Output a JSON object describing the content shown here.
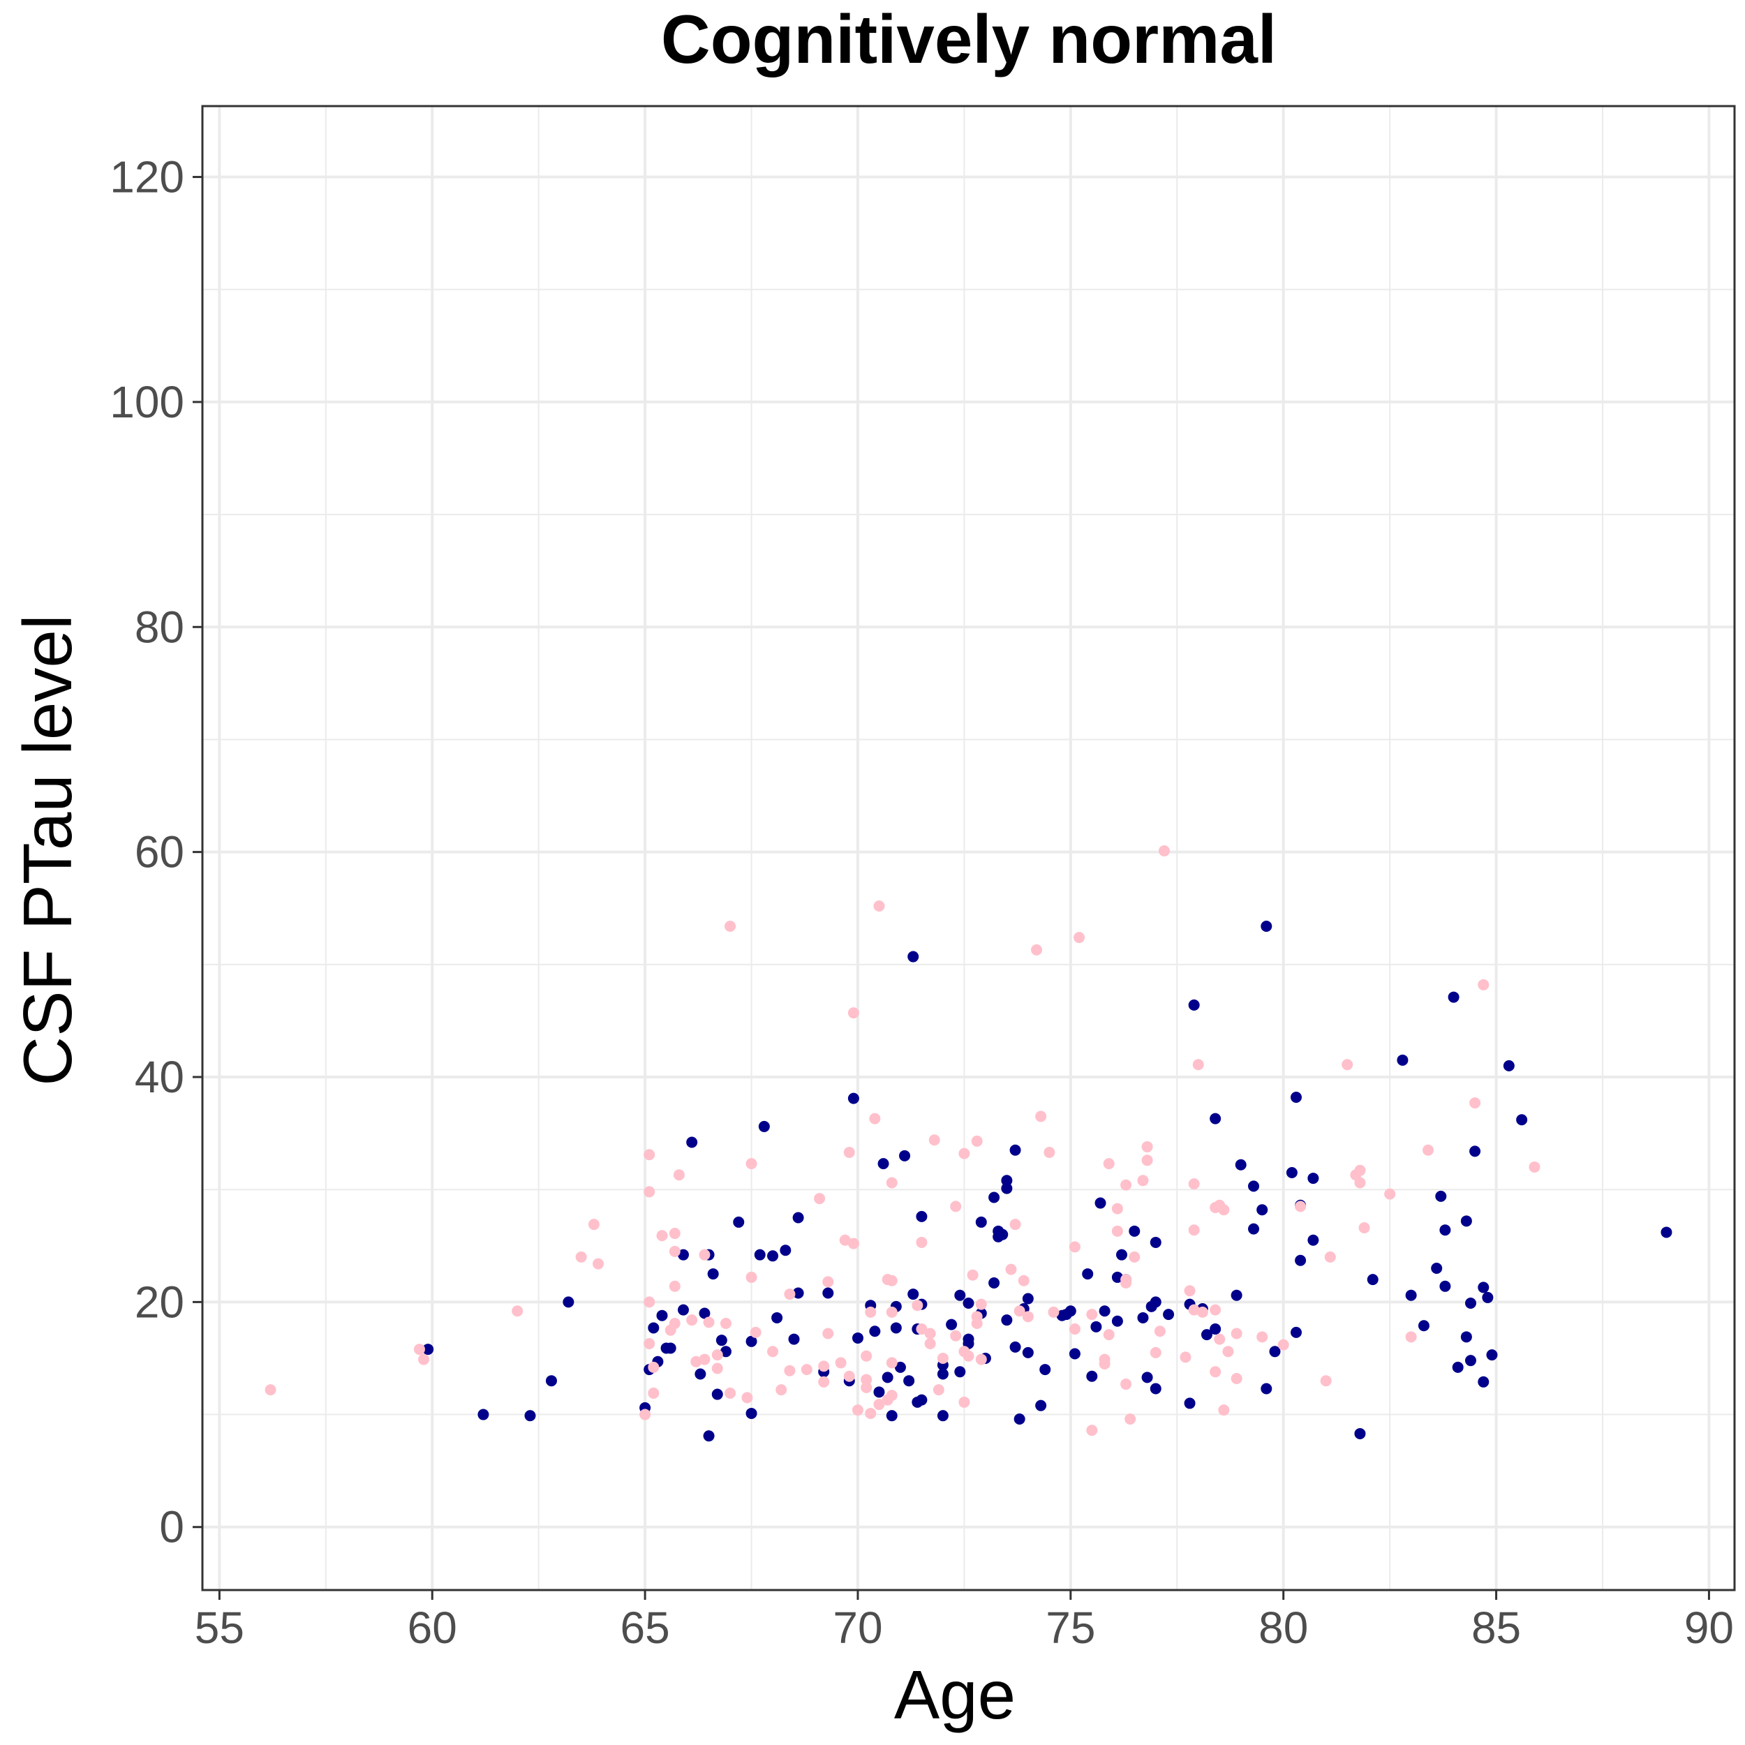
{
  "chart_data": {
    "type": "scatter",
    "title": "Cognitively normal",
    "xlabel": "Age",
    "ylabel": "CSF PTau level",
    "xlim": [
      54.6,
      90.6
    ],
    "ylim": [
      -5.6,
      126.3
    ],
    "x_ticks": [
      55,
      60,
      65,
      70,
      75,
      80,
      85,
      90
    ],
    "y_ticks": [
      0,
      20,
      40,
      60,
      80,
      100,
      120
    ],
    "x_tick_labels": [
      "55",
      "60",
      "65",
      "70",
      "75",
      "80",
      "85",
      "90"
    ],
    "y_tick_labels": [
      "0",
      "20",
      "40",
      "60",
      "80",
      "100",
      "120"
    ],
    "grid": true,
    "legend": "none",
    "series": [
      {
        "color": "#00008B",
        "points": [
          [
            59.9,
            15.8
          ],
          [
            61.2,
            10.0
          ],
          [
            62.3,
            9.9
          ],
          [
            62.8,
            13.0
          ],
          [
            63.2,
            20.0
          ],
          [
            65.0,
            10.6
          ],
          [
            65.1,
            14.0
          ],
          [
            65.2,
            17.7
          ],
          [
            65.3,
            14.7
          ],
          [
            65.4,
            18.8
          ],
          [
            65.5,
            15.9
          ],
          [
            65.6,
            15.9
          ],
          [
            65.9,
            19.3
          ],
          [
            65.9,
            24.2
          ],
          [
            66.1,
            34.2
          ],
          [
            66.3,
            13.6
          ],
          [
            66.4,
            19.0
          ],
          [
            66.5,
            24.2
          ],
          [
            66.5,
            8.1
          ],
          [
            66.6,
            22.5
          ],
          [
            66.7,
            11.8
          ],
          [
            66.8,
            16.6
          ],
          [
            66.9,
            15.6
          ],
          [
            67.2,
            27.1
          ],
          [
            67.5,
            10.1
          ],
          [
            67.5,
            16.5
          ],
          [
            67.7,
            24.2
          ],
          [
            67.8,
            35.6
          ],
          [
            68.0,
            24.1
          ],
          [
            68.1,
            18.6
          ],
          [
            68.3,
            24.6
          ],
          [
            68.5,
            16.7
          ],
          [
            68.6,
            20.8
          ],
          [
            68.6,
            27.5
          ],
          [
            69.2,
            13.8
          ],
          [
            69.3,
            20.8
          ],
          [
            69.8,
            13.0
          ],
          [
            69.9,
            38.1
          ],
          [
            70.0,
            16.8
          ],
          [
            70.3,
            19.7
          ],
          [
            70.4,
            17.4
          ],
          [
            70.5,
            12.0
          ],
          [
            70.6,
            32.3
          ],
          [
            70.7,
            13.3
          ],
          [
            70.8,
            9.9
          ],
          [
            70.9,
            19.6
          ],
          [
            70.9,
            17.7
          ],
          [
            71.0,
            14.2
          ],
          [
            71.1,
            33.0
          ],
          [
            71.2,
            13.0
          ],
          [
            71.3,
            20.7
          ],
          [
            71.3,
            50.7
          ],
          [
            71.4,
            17.6
          ],
          [
            71.4,
            11.1
          ],
          [
            71.5,
            27.6
          ],
          [
            71.5,
            11.3
          ],
          [
            71.5,
            19.8
          ],
          [
            72.0,
            14.4
          ],
          [
            72.0,
            13.6
          ],
          [
            72.0,
            9.9
          ],
          [
            72.2,
            18.0
          ],
          [
            72.4,
            13.8
          ],
          [
            72.4,
            20.6
          ],
          [
            72.6,
            16.7
          ],
          [
            72.6,
            16.3
          ],
          [
            72.6,
            19.9
          ],
          [
            72.9,
            27.1
          ],
          [
            72.9,
            19.0
          ],
          [
            73.0,
            15.0
          ],
          [
            73.2,
            29.3
          ],
          [
            73.2,
            21.7
          ],
          [
            73.3,
            26.3
          ],
          [
            73.3,
            25.8
          ],
          [
            73.4,
            26.0
          ],
          [
            73.5,
            30.1
          ],
          [
            73.5,
            30.8
          ],
          [
            73.5,
            18.4
          ],
          [
            73.7,
            33.5
          ],
          [
            73.7,
            16.0
          ],
          [
            73.8,
            9.6
          ],
          [
            73.9,
            19.4
          ],
          [
            74.0,
            20.3
          ],
          [
            74.0,
            15.5
          ],
          [
            74.3,
            10.8
          ],
          [
            74.4,
            14.0
          ],
          [
            74.8,
            18.8
          ],
          [
            74.9,
            18.9
          ],
          [
            75.0,
            19.2
          ],
          [
            75.1,
            15.4
          ],
          [
            75.4,
            22.5
          ],
          [
            75.5,
            13.4
          ],
          [
            75.6,
            17.8
          ],
          [
            75.7,
            28.8
          ],
          [
            75.8,
            19.2
          ],
          [
            76.1,
            18.3
          ],
          [
            76.1,
            22.2
          ],
          [
            76.2,
            24.2
          ],
          [
            76.3,
            22.0
          ],
          [
            76.5,
            26.3
          ],
          [
            76.7,
            18.6
          ],
          [
            76.8,
            13.3
          ],
          [
            76.9,
            19.6
          ],
          [
            77.0,
            12.3
          ],
          [
            77.0,
            20.0
          ],
          [
            77.0,
            25.3
          ],
          [
            77.3,
            18.9
          ],
          [
            77.8,
            11.0
          ],
          [
            77.8,
            19.8
          ],
          [
            77.9,
            46.4
          ],
          [
            78.1,
            19.4
          ],
          [
            78.2,
            17.1
          ],
          [
            78.4,
            36.3
          ],
          [
            78.4,
            17.6
          ],
          [
            78.9,
            20.6
          ],
          [
            79.0,
            32.2
          ],
          [
            79.3,
            26.5
          ],
          [
            79.3,
            30.3
          ],
          [
            79.5,
            28.2
          ],
          [
            79.6,
            53.4
          ],
          [
            79.6,
            12.3
          ],
          [
            79.8,
            15.6
          ],
          [
            80.2,
            31.5
          ],
          [
            80.3,
            17.3
          ],
          [
            80.3,
            38.2
          ],
          [
            80.4,
            23.7
          ],
          [
            80.4,
            28.6
          ],
          [
            80.7,
            31.0
          ],
          [
            80.7,
            25.5
          ],
          [
            81.8,
            8.3
          ],
          [
            82.1,
            22.0
          ],
          [
            82.8,
            41.5
          ],
          [
            83.0,
            20.6
          ],
          [
            83.3,
            17.9
          ],
          [
            83.6,
            23.0
          ],
          [
            83.7,
            29.4
          ],
          [
            83.8,
            26.4
          ],
          [
            83.8,
            21.4
          ],
          [
            84.0,
            47.1
          ],
          [
            84.1,
            14.2
          ],
          [
            84.3,
            27.2
          ],
          [
            84.3,
            16.9
          ],
          [
            84.4,
            19.9
          ],
          [
            84.4,
            14.8
          ],
          [
            84.5,
            33.4
          ],
          [
            84.7,
            12.9
          ],
          [
            84.7,
            21.3
          ],
          [
            84.8,
            20.4
          ],
          [
            84.9,
            15.3
          ],
          [
            85.3,
            41.0
          ],
          [
            85.6,
            36.2
          ],
          [
            89.0,
            26.2
          ]
        ]
      },
      {
        "color": "#FFC0CB",
        "points": [
          [
            56.2,
            12.2
          ],
          [
            59.7,
            15.8
          ],
          [
            59.8,
            14.9
          ],
          [
            62.0,
            19.2
          ],
          [
            63.5,
            24.0
          ],
          [
            63.8,
            26.9
          ],
          [
            63.9,
            23.4
          ],
          [
            65.0,
            10.0
          ],
          [
            65.1,
            33.1
          ],
          [
            65.1,
            29.8
          ],
          [
            65.1,
            20.0
          ],
          [
            65.1,
            16.3
          ],
          [
            65.2,
            14.2
          ],
          [
            65.2,
            11.9
          ],
          [
            65.4,
            25.9
          ],
          [
            65.6,
            17.5
          ],
          [
            65.7,
            21.4
          ],
          [
            65.7,
            26.1
          ],
          [
            65.7,
            24.5
          ],
          [
            65.7,
            18.1
          ],
          [
            65.8,
            31.3
          ],
          [
            66.1,
            18.4
          ],
          [
            66.2,
            14.7
          ],
          [
            66.4,
            14.9
          ],
          [
            66.4,
            24.2
          ],
          [
            66.5,
            18.2
          ],
          [
            66.7,
            14.1
          ],
          [
            66.7,
            15.3
          ],
          [
            66.9,
            18.1
          ],
          [
            67.0,
            53.4
          ],
          [
            67.0,
            11.9
          ],
          [
            67.4,
            11.5
          ],
          [
            67.5,
            32.3
          ],
          [
            67.5,
            22.2
          ],
          [
            67.6,
            17.3
          ],
          [
            68.0,
            15.6
          ],
          [
            68.2,
            12.2
          ],
          [
            68.4,
            13.9
          ],
          [
            68.4,
            20.7
          ],
          [
            68.8,
            14.0
          ],
          [
            69.1,
            29.2
          ],
          [
            69.2,
            14.3
          ],
          [
            69.2,
            12.9
          ],
          [
            69.3,
            21.8
          ],
          [
            69.3,
            17.2
          ],
          [
            69.6,
            14.6
          ],
          [
            69.7,
            25.5
          ],
          [
            69.8,
            33.3
          ],
          [
            69.8,
            13.4
          ],
          [
            69.9,
            45.7
          ],
          [
            69.9,
            25.2
          ],
          [
            70.0,
            10.4
          ],
          [
            70.2,
            15.2
          ],
          [
            70.2,
            13.1
          ],
          [
            70.2,
            12.4
          ],
          [
            70.3,
            10.1
          ],
          [
            70.3,
            19.1
          ],
          [
            70.4,
            36.3
          ],
          [
            70.5,
            55.2
          ],
          [
            70.5,
            10.9
          ],
          [
            70.7,
            22.0
          ],
          [
            70.7,
            11.3
          ],
          [
            70.8,
            30.6
          ],
          [
            70.8,
            21.9
          ],
          [
            70.8,
            19.1
          ],
          [
            70.8,
            14.6
          ],
          [
            70.8,
            11.7
          ],
          [
            71.4,
            19.7
          ],
          [
            71.5,
            25.3
          ],
          [
            71.5,
            17.6
          ],
          [
            71.7,
            16.3
          ],
          [
            71.7,
            17.2
          ],
          [
            71.8,
            34.4
          ],
          [
            71.9,
            12.2
          ],
          [
            72.0,
            15.0
          ],
          [
            72.3,
            28.5
          ],
          [
            72.3,
            17.0
          ],
          [
            72.5,
            33.2
          ],
          [
            72.5,
            15.6
          ],
          [
            72.5,
            11.1
          ],
          [
            72.6,
            15.2
          ],
          [
            72.7,
            22.4
          ],
          [
            72.8,
            34.3
          ],
          [
            72.8,
            18.7
          ],
          [
            72.8,
            18.1
          ],
          [
            72.9,
            14.9
          ],
          [
            72.9,
            19.8
          ],
          [
            73.6,
            22.9
          ],
          [
            73.7,
            26.9
          ],
          [
            73.8,
            19.2
          ],
          [
            73.9,
            21.9
          ],
          [
            74.0,
            18.7
          ],
          [
            74.2,
            51.3
          ],
          [
            74.3,
            36.5
          ],
          [
            74.5,
            33.3
          ],
          [
            74.6,
            19.1
          ],
          [
            75.1,
            24.9
          ],
          [
            75.1,
            17.6
          ],
          [
            75.2,
            52.4
          ],
          [
            75.5,
            8.6
          ],
          [
            75.5,
            18.9
          ],
          [
            75.8,
            14.9
          ],
          [
            75.8,
            14.5
          ],
          [
            75.9,
            32.3
          ],
          [
            75.9,
            17.1
          ],
          [
            76.1,
            28.3
          ],
          [
            76.1,
            26.3
          ],
          [
            76.3,
            30.4
          ],
          [
            76.3,
            22.0
          ],
          [
            76.3,
            21.7
          ],
          [
            76.3,
            12.7
          ],
          [
            76.4,
            9.6
          ],
          [
            76.5,
            24.0
          ],
          [
            76.7,
            30.8
          ],
          [
            76.8,
            33.8
          ],
          [
            76.8,
            32.6
          ],
          [
            77.0,
            15.5
          ],
          [
            77.1,
            17.4
          ],
          [
            77.2,
            60.1
          ],
          [
            77.7,
            15.1
          ],
          [
            77.8,
            21.0
          ],
          [
            77.9,
            30.5
          ],
          [
            77.9,
            26.4
          ],
          [
            77.9,
            19.3
          ],
          [
            78.0,
            41.1
          ],
          [
            78.1,
            19.1
          ],
          [
            78.4,
            28.4
          ],
          [
            78.4,
            19.3
          ],
          [
            78.4,
            13.8
          ],
          [
            78.5,
            16.7
          ],
          [
            78.5,
            28.6
          ],
          [
            78.6,
            10.4
          ],
          [
            78.6,
            28.2
          ],
          [
            78.7,
            15.6
          ],
          [
            78.9,
            17.2
          ],
          [
            78.9,
            13.2
          ],
          [
            79.5,
            16.9
          ],
          [
            80.0,
            16.2
          ],
          [
            80.4,
            28.5
          ],
          [
            81.0,
            13.0
          ],
          [
            81.1,
            24.0
          ],
          [
            81.5,
            41.1
          ],
          [
            81.7,
            31.3
          ],
          [
            81.8,
            30.6
          ],
          [
            81.8,
            31.7
          ],
          [
            81.9,
            26.6
          ],
          [
            82.5,
            29.6
          ],
          [
            83.0,
            16.9
          ],
          [
            83.4,
            33.5
          ],
          [
            84.5,
            37.7
          ],
          [
            84.7,
            48.2
          ],
          [
            85.9,
            32.0
          ]
        ]
      }
    ]
  }
}
